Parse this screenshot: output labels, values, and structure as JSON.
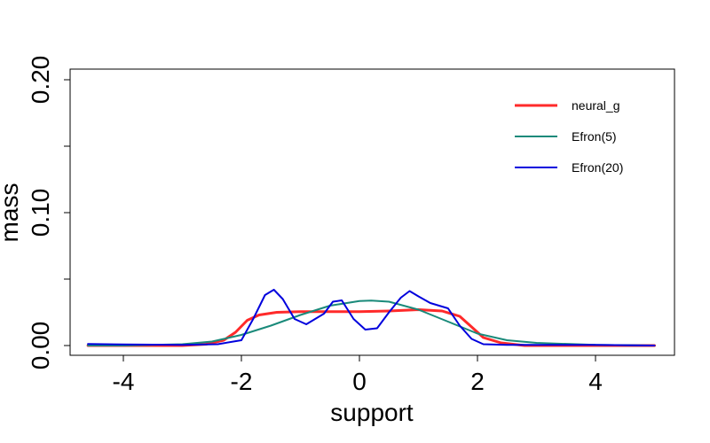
{
  "chart_data": {
    "type": "line",
    "title": "",
    "xlabel": "support",
    "ylabel": "mass",
    "xlim": [
      -4.6,
      5.0
    ],
    "ylim": [
      0.0,
      0.2
    ],
    "xticks": [
      -4,
      -2,
      0,
      2,
      4
    ],
    "xtick_labels": [
      "-4",
      "-2",
      "0",
      "2",
      "4"
    ],
    "yticks": [
      0.0,
      0.05,
      0.1,
      0.15,
      0.2
    ],
    "ytick_labels": [
      "0.00",
      "",
      "0.10",
      "",
      "0.20"
    ],
    "grid": false,
    "legend_position": "top-right",
    "series": [
      {
        "name": "neural_g",
        "color": "#ff2a2a",
        "width": 3,
        "x": [
          -4.6,
          -3.0,
          -2.6,
          -2.3,
          -2.1,
          -1.9,
          -1.7,
          -1.4,
          -1.0,
          -0.5,
          0.0,
          0.5,
          1.0,
          1.4,
          1.7,
          1.9,
          2.1,
          2.4,
          2.8,
          3.5,
          5.0
        ],
        "y": [
          0.0,
          0.0,
          0.001,
          0.004,
          0.01,
          0.019,
          0.023,
          0.025,
          0.0255,
          0.0255,
          0.0255,
          0.026,
          0.027,
          0.026,
          0.022,
          0.014,
          0.006,
          0.002,
          0.0,
          0.0,
          0.0
        ]
      },
      {
        "name": "Efron(5)",
        "color": "#1a8a7a",
        "width": 2,
        "x": [
          -4.6,
          -4.0,
          -3.0,
          -2.5,
          -2.0,
          -1.5,
          -1.0,
          -0.5,
          0.0,
          0.2,
          0.5,
          1.0,
          1.5,
          2.0,
          2.5,
          3.0,
          4.0,
          5.0
        ],
        "y": [
          0.0,
          0.0,
          0.001,
          0.003,
          0.008,
          0.015,
          0.023,
          0.03,
          0.0335,
          0.0338,
          0.033,
          0.027,
          0.018,
          0.009,
          0.004,
          0.002,
          0.0005,
          0.0
        ]
      },
      {
        "name": "Efron(20)",
        "color": "#0000dd",
        "width": 2,
        "x": [
          -4.6,
          -4.0,
          -3.0,
          -2.4,
          -2.0,
          -1.8,
          -1.6,
          -1.45,
          -1.3,
          -1.1,
          -0.9,
          -0.6,
          -0.45,
          -0.3,
          -0.1,
          0.1,
          0.3,
          0.5,
          0.7,
          0.85,
          1.0,
          1.2,
          1.5,
          1.7,
          1.9,
          2.1,
          2.5,
          3.0,
          4.0,
          5.0
        ],
        "y": [
          0.0012,
          0.0008,
          0.0005,
          0.001,
          0.004,
          0.02,
          0.038,
          0.042,
          0.035,
          0.02,
          0.016,
          0.024,
          0.033,
          0.034,
          0.02,
          0.012,
          0.013,
          0.025,
          0.036,
          0.041,
          0.037,
          0.032,
          0.028,
          0.015,
          0.005,
          0.001,
          0.0005,
          0.0005,
          0.0005,
          0.0
        ]
      }
    ]
  }
}
